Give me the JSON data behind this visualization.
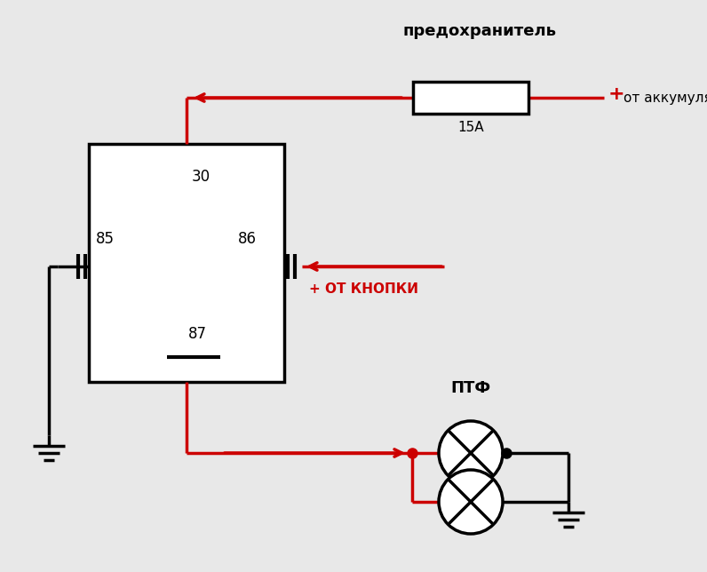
{
  "bg_color": "#e8e8e8",
  "black": "#000000",
  "red": "#cc0000",
  "fuse_label": "предохранитель",
  "fuse_amp": "15А",
  "battery_label": "от аккумулятора",
  "button_label": "+ ОТ КНОПКИ",
  "ptf_label": "ПТФ",
  "pin30": "30",
  "pin85": "85",
  "pin86": "86",
  "pin87": "87"
}
